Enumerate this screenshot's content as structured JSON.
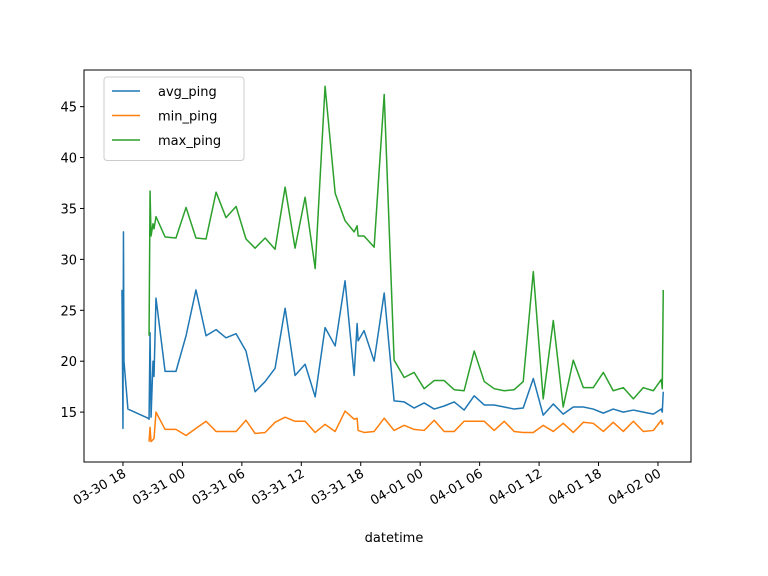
{
  "chart_data": {
    "type": "line",
    "xlabel": "datetime",
    "x": [
      "03-30 17:54",
      "03-30 18:00",
      "03-30 18:03",
      "03-30 18:06",
      "03-30 18:30",
      "03-30 20:32",
      "03-30 20:38",
      "03-30 20:44",
      "03-30 20:50",
      "03-30 21:02",
      "03-30 21:08",
      "03-30 21:20",
      "03-30 22:15",
      "03-30 23:21",
      "03-31 00:22",
      "03-31 01:22",
      "03-31 02:23",
      "03-31 03:24",
      "03-31 04:24",
      "03-31 05:25",
      "03-31 06:25",
      "03-31 07:20",
      "03-31 08:21",
      "03-31 09:21",
      "03-31 10:22",
      "03-31 11:22",
      "03-31 12:23",
      "03-31 13:24",
      "03-31 14:24",
      "03-31 15:25",
      "03-31 16:25",
      "03-31 17:20",
      "03-31 17:38",
      "03-31 17:44",
      "03-31 18:20",
      "03-31 19:21",
      "03-31 20:22",
      "03-31 21:22",
      "03-31 22:23",
      "03-31 23:23",
      "04-01 00:24",
      "04-01 01:25",
      "04-01 02:25",
      "04-01 03:26",
      "04-01 04:26",
      "04-01 05:27",
      "04-01 06:28",
      "04-01 07:28",
      "04-01 08:29",
      "04-01 09:29",
      "04-01 10:24",
      "04-01 11:25",
      "04-01 12:25",
      "04-01 13:26",
      "04-01 14:26",
      "04-01 15:27",
      "04-01 16:28",
      "04-01 17:28",
      "04-01 18:29",
      "04-01 19:29",
      "04-01 20:30",
      "04-01 21:31",
      "04-01 22:31",
      "04-01 23:32",
      "04-02 00:20",
      "04-02 00:26",
      "04-02 00:32"
    ],
    "series": [
      {
        "name": "avg_ping",
        "color": "#1f77b4",
        "values": [
          27,
          13.4,
          32.7,
          20,
          15.3,
          14.4,
          14.3,
          22.8,
          14.5,
          20,
          18.5,
          26.2,
          19,
          19,
          22.5,
          27,
          22.5,
          23.1,
          22.3,
          22.7,
          21,
          17,
          18,
          19.3,
          25.2,
          18.6,
          19.7,
          16.5,
          23.3,
          21.5,
          27.9,
          18.6,
          23.7,
          22,
          23,
          20,
          26.7,
          16.1,
          16,
          15.4,
          15.9,
          15.3,
          15.6,
          16,
          15.2,
          16.6,
          15.7,
          15.7,
          15.5,
          15.3,
          15.4,
          18.3,
          14.7,
          15.8,
          14.8,
          15.5,
          15.5,
          15.3,
          14.9,
          15.3,
          15,
          15.2,
          15,
          14.8,
          15.3,
          15,
          17
        ]
      },
      {
        "name": "min_ping",
        "color": "#ff7f0e",
        "values": [
          null,
          null,
          null,
          null,
          null,
          null,
          12.1,
          13.5,
          12.1,
          12.3,
          12.4,
          15,
          13.3,
          13.3,
          12.7,
          13.4,
          14.1,
          13.1,
          13.1,
          13.1,
          14.2,
          12.9,
          13,
          14,
          14.5,
          14.1,
          14.1,
          13,
          13.8,
          13.1,
          15.1,
          14.3,
          14.4,
          13.2,
          13,
          13.1,
          14.4,
          13.2,
          13.7,
          13.3,
          13.2,
          14.2,
          13.1,
          13.1,
          14.1,
          14.1,
          14.1,
          13.2,
          14.1,
          13.1,
          13,
          13,
          13.7,
          13.1,
          13.9,
          13,
          14,
          13.9,
          13.1,
          14,
          13.1,
          14.1,
          13.1,
          13.2,
          14.2,
          13.8,
          14
        ]
      },
      {
        "name": "max_ping",
        "color": "#2ca02c",
        "values": [
          null,
          null,
          null,
          null,
          null,
          null,
          22.5,
          36.7,
          32.3,
          33.5,
          33,
          34.2,
          32.2,
          32.1,
          35.1,
          32.1,
          32,
          36.6,
          34.1,
          35.2,
          32,
          31.1,
          32.1,
          31,
          37.1,
          31.1,
          36.1,
          29.1,
          47,
          36.5,
          33.8,
          32.7,
          33.3,
          32.3,
          32.3,
          31.2,
          46.2,
          20.1,
          18.4,
          18.9,
          17.3,
          18.1,
          18.1,
          17.2,
          17.1,
          21,
          18,
          17.3,
          17.1,
          17.2,
          18,
          28.8,
          16.3,
          24,
          15.5,
          20.1,
          17.4,
          17.4,
          18.9,
          17.1,
          17.4,
          16.3,
          17.4,
          17.1,
          18.2,
          17.3,
          27
        ]
      }
    ],
    "xlim": [
      "03-30 14:04",
      "04-02 03:20"
    ],
    "xticks": [
      "03-30 18",
      "03-31 00",
      "03-31 06",
      "03-31 12",
      "03-31 18",
      "04-01 00",
      "04-01 06",
      "04-01 12",
      "04-01 18",
      "04-02 00"
    ],
    "ylim": [
      10.1,
      48.6
    ],
    "yticks": [
      15,
      20,
      25,
      30,
      35,
      40,
      45
    ],
    "legend": "upper left"
  }
}
